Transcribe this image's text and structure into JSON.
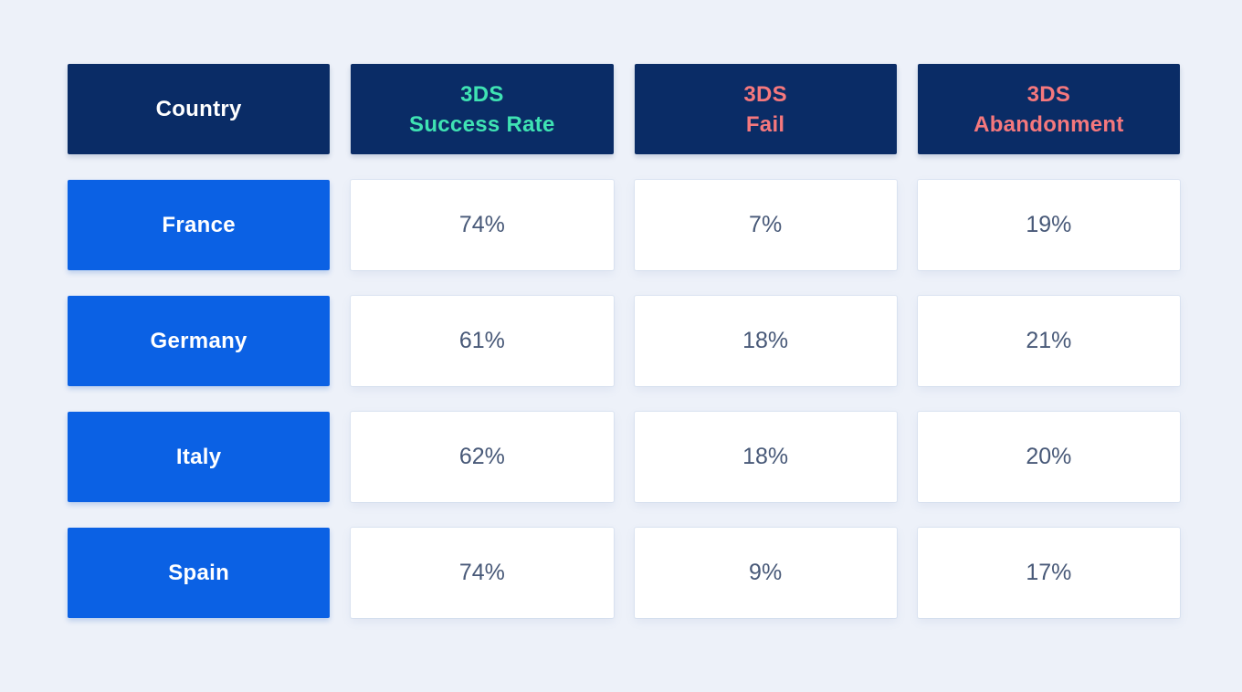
{
  "table": {
    "headers": [
      {
        "line1": "Country"
      },
      {
        "line1": "3DS",
        "line2": "Success Rate"
      },
      {
        "line1": "3DS",
        "line2": "Fail"
      },
      {
        "line1": "3DS",
        "line2": "Abandonment"
      }
    ],
    "rows": [
      {
        "country": "France",
        "values": [
          "74%",
          "7%",
          "19%"
        ]
      },
      {
        "country": "Germany",
        "values": [
          "61%",
          "18%",
          "21%"
        ]
      },
      {
        "country": "Italy",
        "values": [
          "62%",
          "18%",
          "20%"
        ]
      },
      {
        "country": "Spain",
        "values": [
          "74%",
          "9%",
          "17%"
        ]
      }
    ]
  },
  "colors": {
    "page_background": "#edf1f9",
    "header_cell_background": "#0a2c66",
    "header_country_text": "#ffffff",
    "header_success_text": "#3fe3b3",
    "header_fail_text": "#f5787d",
    "header_abandonment_text": "#f5787d",
    "country_cell_background": "#0b61e4",
    "country_cell_text": "#ffffff",
    "value_cell_background": "#ffffff",
    "value_text": "#485978"
  },
  "chart_data": {
    "type": "table",
    "columns": [
      "Country",
      "3DS Success Rate",
      "3DS Fail",
      "3DS Abandonment"
    ],
    "rows": [
      [
        "France",
        "74%",
        "7%",
        "19%"
      ],
      [
        "Germany",
        "61%",
        "18%",
        "21%"
      ],
      [
        "Italy",
        "62%",
        "18%",
        "20%"
      ],
      [
        "Spain",
        "74%",
        "9%",
        "17%"
      ]
    ],
    "series": [
      {
        "name": "3DS Success Rate",
        "values": [
          74,
          61,
          62,
          74
        ]
      },
      {
        "name": "3DS Fail",
        "values": [
          7,
          18,
          18,
          9
        ]
      },
      {
        "name": "3DS Abandonment",
        "values": [
          19,
          21,
          20,
          17
        ]
      }
    ],
    "categories": [
      "France",
      "Germany",
      "Italy",
      "Spain"
    ],
    "unit": "%"
  }
}
